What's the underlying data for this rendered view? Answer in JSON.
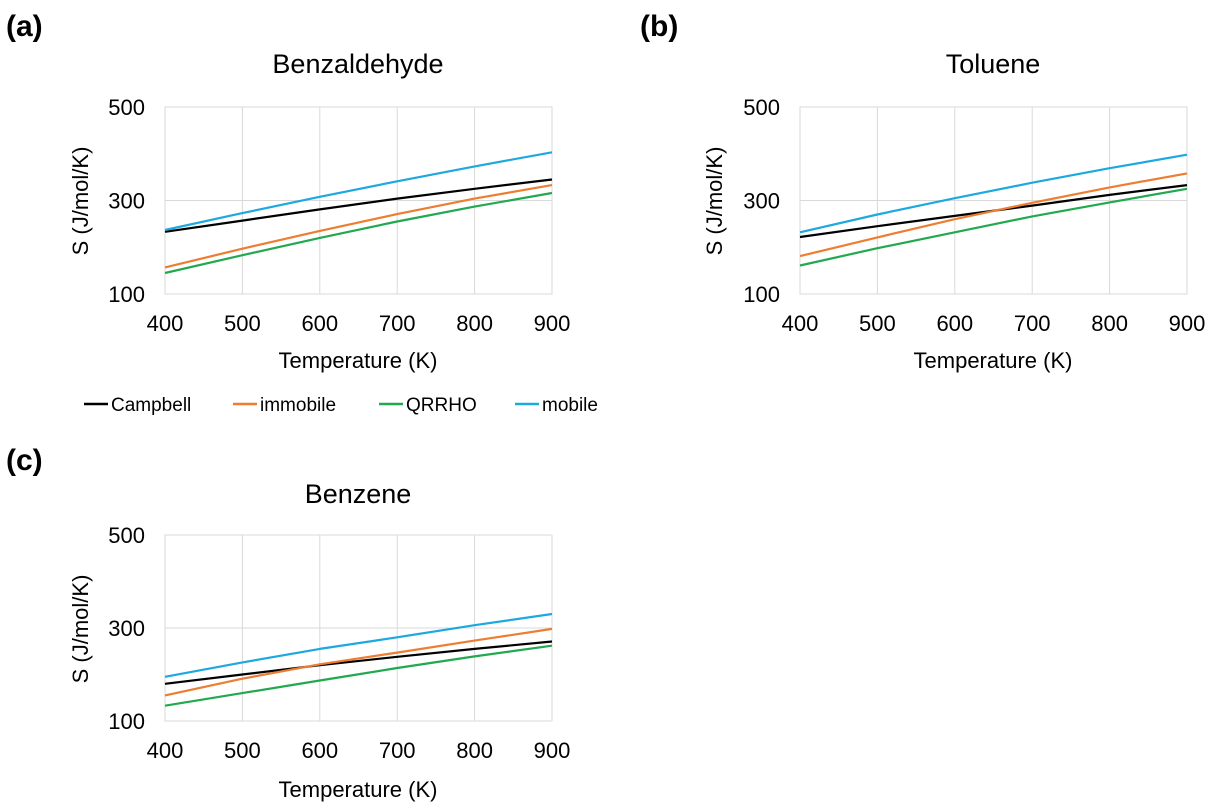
{
  "panels": [
    {
      "label": "(a)",
      "chart_data": {
        "type": "line",
        "title": "Benzaldehyde",
        "xlabel": "Temperature (K)",
        "ylabel": "S (J/mol/K)",
        "xlim": [
          400,
          900
        ],
        "ylim": [
          100,
          500
        ],
        "xticks": [
          400,
          500,
          600,
          700,
          800,
          900
        ],
        "yticks": [
          100,
          300,
          500
        ],
        "grid": true,
        "x": [
          400,
          500,
          600,
          700,
          800,
          900
        ],
        "series": [
          {
            "name": "Campbell",
            "color": "#000000",
            "values": [
              233,
              257,
              281,
              304,
              325,
              345
            ]
          },
          {
            "name": "immobile",
            "color": "#ed7d31",
            "values": [
              157,
              197,
              235,
              271,
              304,
              333
            ]
          },
          {
            "name": "QRRHO",
            "color": "#22a94f",
            "values": [
              145,
              183,
              220,
              255,
              287,
              316
            ]
          },
          {
            "name": "mobile",
            "color": "#1ea8e0",
            "values": [
              237,
              273,
              308,
              341,
              373,
              403
            ]
          }
        ]
      }
    },
    {
      "label": "(b)",
      "chart_data": {
        "type": "line",
        "title": "Toluene",
        "xlabel": "Temperature (K)",
        "ylabel": "S (J/mol/K)",
        "xlim": [
          400,
          900
        ],
        "ylim": [
          100,
          500
        ],
        "xticks": [
          400,
          500,
          600,
          700,
          800,
          900
        ],
        "yticks": [
          100,
          300,
          500
        ],
        "grid": true,
        "x": [
          400,
          500,
          600,
          700,
          800,
          900
        ],
        "series": [
          {
            "name": "Campbell",
            "color": "#000000",
            "values": [
              222,
              245,
              267,
              289,
              312,
              333
            ]
          },
          {
            "name": "immobile",
            "color": "#ed7d31",
            "values": [
              181,
              221,
              260,
              295,
              328,
              358
            ]
          },
          {
            "name": "QRRHO",
            "color": "#22a94f",
            "values": [
              161,
              198,
              232,
              266,
              296,
              325
            ]
          },
          {
            "name": "mobile",
            "color": "#1ea8e0",
            "values": [
              232,
              270,
              305,
              338,
              369,
              398
            ]
          }
        ]
      }
    },
    {
      "label": "(c)",
      "chart_data": {
        "type": "line",
        "title": "Benzene",
        "xlabel": "Temperature (K)",
        "ylabel": "S (J/mol/K)",
        "xlim": [
          400,
          900
        ],
        "ylim": [
          100,
          500
        ],
        "xticks": [
          400,
          500,
          600,
          700,
          800,
          900
        ],
        "yticks": [
          100,
          300,
          500
        ],
        "grid": true,
        "x": [
          400,
          500,
          600,
          700,
          800,
          900
        ],
        "series": [
          {
            "name": "Campbell",
            "color": "#000000",
            "values": [
              180,
              200,
              220,
              238,
              255,
              271
            ]
          },
          {
            "name": "immobile",
            "color": "#ed7d31",
            "values": [
              155,
              191,
              222,
              247,
              273,
              298
            ]
          },
          {
            "name": "QRRHO",
            "color": "#22a94f",
            "values": [
              133,
              160,
              187,
              214,
              239,
              262
            ]
          },
          {
            "name": "mobile",
            "color": "#1ea8e0",
            "values": [
              195,
              226,
              255,
              280,
              306,
              330
            ]
          }
        ]
      }
    }
  ],
  "legend": {
    "entries": [
      {
        "name": "Campbell",
        "color": "#000000"
      },
      {
        "name": "immobile",
        "color": "#ed7d31"
      },
      {
        "name": "QRRHO",
        "color": "#22a94f"
      },
      {
        "name": "mobile",
        "color": "#1ea8e0"
      }
    ]
  }
}
